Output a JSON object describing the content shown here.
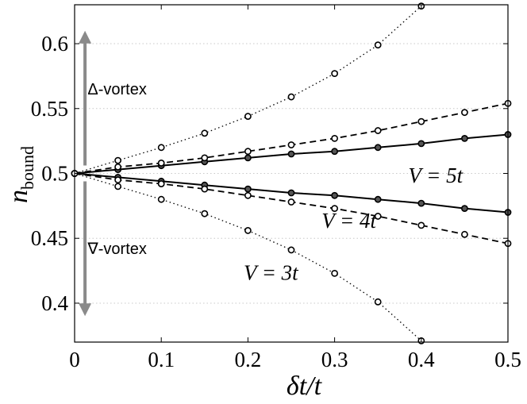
{
  "chart_data": {
    "type": "line",
    "xlabel": "δt/t",
    "ylabel": "n",
    "ylabel_subscript": "bound",
    "xlim": [
      0,
      0.5
    ],
    "ylim": [
      0.37,
      0.63
    ],
    "xticks": [
      "0",
      "0.1",
      "0.2",
      "0.3",
      "0.4",
      "0.5"
    ],
    "xtick_values": [
      0,
      0.1,
      0.2,
      0.3,
      0.4,
      0.5
    ],
    "yticks": [
      "0.4",
      "0.45",
      "0.5",
      "0.55",
      "0.6"
    ],
    "ytick_values": [
      0.4,
      0.45,
      0.5,
      0.55,
      0.6
    ],
    "grid": "horizontal-dotted",
    "series": [
      {
        "style": "solid",
        "marker": "filled-circle",
        "x": [
          0,
          0.05,
          0.1,
          0.15,
          0.2,
          0.25,
          0.3,
          0.35,
          0.4,
          0.45,
          0.5
        ],
        "y": [
          0.5,
          0.503,
          0.506,
          0.509,
          0.512,
          0.515,
          0.517,
          0.52,
          0.523,
          0.527,
          0.53
        ]
      },
      {
        "style": "solid",
        "marker": "filled-circle",
        "x": [
          0,
          0.05,
          0.1,
          0.15,
          0.2,
          0.25,
          0.3,
          0.35,
          0.4,
          0.45,
          0.5
        ],
        "y": [
          0.5,
          0.497,
          0.494,
          0.491,
          0.488,
          0.485,
          0.483,
          0.48,
          0.477,
          0.473,
          0.47
        ]
      },
      {
        "style": "dashed",
        "marker": "open-circle",
        "x": [
          0,
          0.05,
          0.1,
          0.15,
          0.2,
          0.25,
          0.3,
          0.35,
          0.4,
          0.45,
          0.5
        ],
        "y": [
          0.5,
          0.505,
          0.508,
          0.512,
          0.517,
          0.522,
          0.527,
          0.533,
          0.54,
          0.547,
          0.554
        ]
      },
      {
        "style": "dashed",
        "marker": "open-circle",
        "x": [
          0,
          0.05,
          0.1,
          0.15,
          0.2,
          0.25,
          0.3,
          0.35,
          0.4,
          0.45,
          0.5
        ],
        "y": [
          0.5,
          0.495,
          0.492,
          0.488,
          0.483,
          0.478,
          0.473,
          0.467,
          0.46,
          0.453,
          0.446
        ]
      },
      {
        "style": "dotted",
        "marker": "open-circle",
        "x": [
          0,
          0.05,
          0.1,
          0.15,
          0.2,
          0.25,
          0.3,
          0.35,
          0.4
        ],
        "y": [
          0.5,
          0.51,
          0.52,
          0.531,
          0.544,
          0.559,
          0.577,
          0.599,
          0.629
        ]
      },
      {
        "style": "dotted",
        "marker": "open-circle",
        "x": [
          0,
          0.05,
          0.1,
          0.15,
          0.2,
          0.25,
          0.3,
          0.35,
          0.4
        ],
        "y": [
          0.5,
          0.49,
          0.48,
          0.469,
          0.456,
          0.441,
          0.423,
          0.401,
          0.371
        ]
      }
    ],
    "annotations": [
      {
        "text": "Δ-vortex",
        "x": 0.015,
        "y": 0.561
      },
      {
        "text": "∇-vortex",
        "x": 0.015,
        "y": 0.438
      },
      {
        "text": "V = 5t",
        "x": 0.385,
        "y": 0.493
      },
      {
        "text": "V = 4t",
        "x": 0.285,
        "y": 0.458
      },
      {
        "text": "V = 3t",
        "x": 0.195,
        "y": 0.418
      }
    ],
    "arrows": [
      {
        "direction": "up",
        "x": 0.012,
        "y_from": 0.5,
        "y_to": 0.61
      },
      {
        "direction": "down",
        "x": 0.012,
        "y_from": 0.5,
        "y_to": 0.39
      }
    ]
  }
}
